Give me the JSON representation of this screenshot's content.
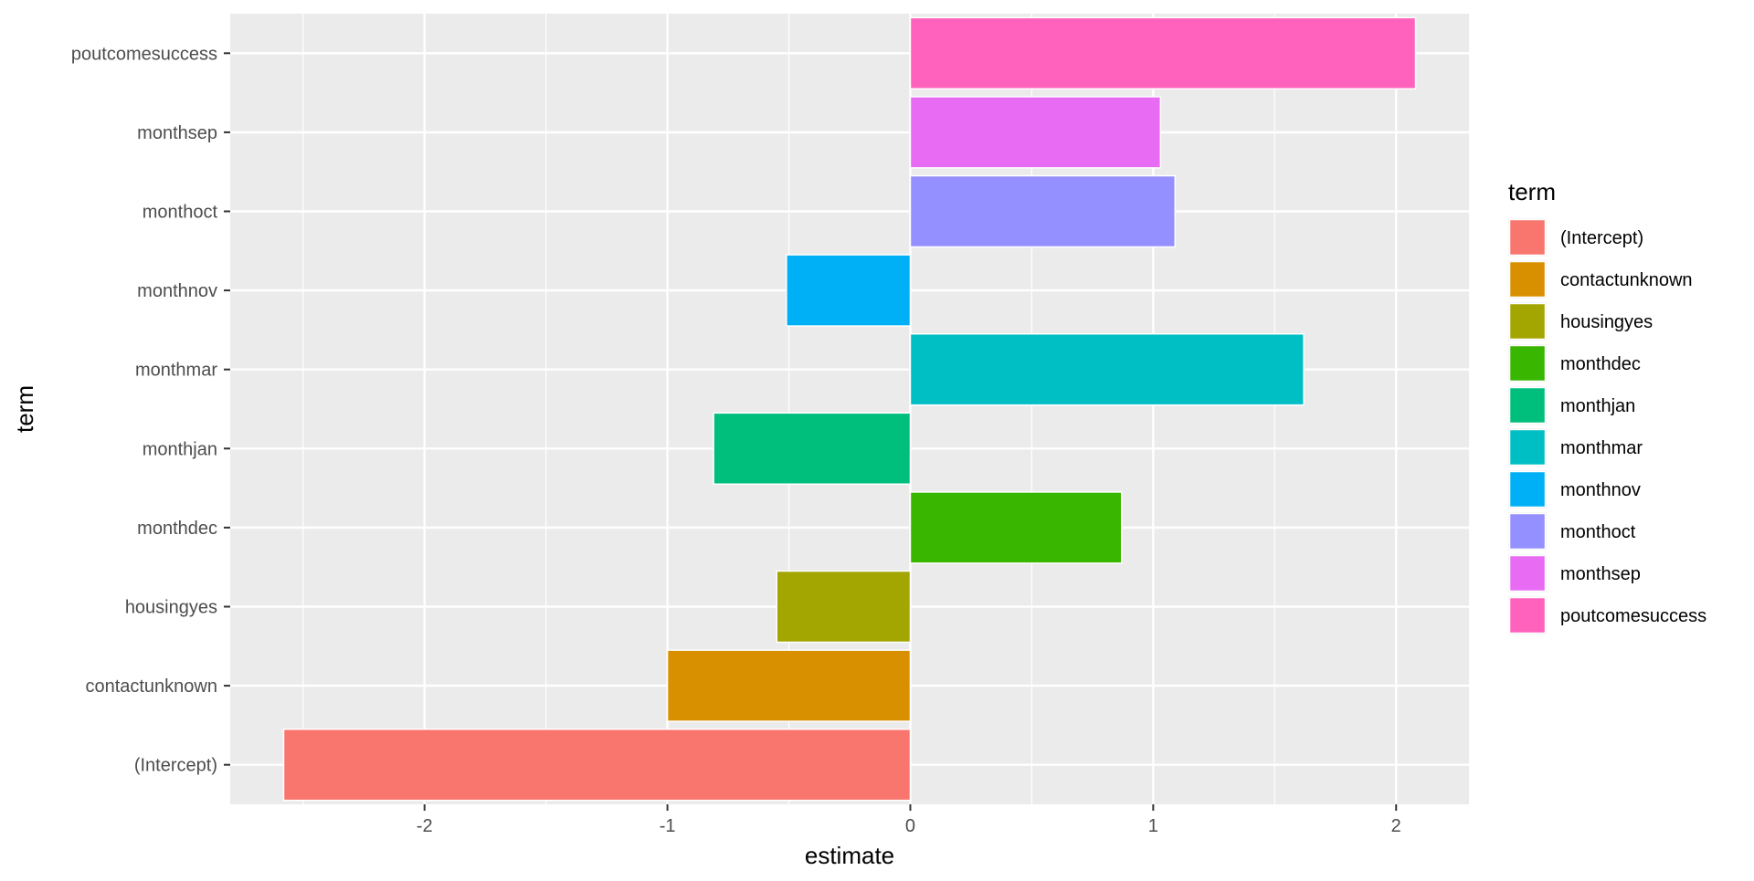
{
  "chart_data": {
    "type": "bar",
    "orientation": "horizontal",
    "categories": [
      "(Intercept)",
      "contactunknown",
      "housingyes",
      "monthdec",
      "monthjan",
      "monthmar",
      "monthnov",
      "monthoct",
      "monthsep",
      "poutcomesuccess"
    ],
    "values": [
      -2.58,
      -1.0,
      -0.55,
      0.87,
      -0.81,
      1.62,
      -0.51,
      1.09,
      1.03,
      2.08
    ],
    "colors": [
      "#F8766D",
      "#D89000",
      "#A3A500",
      "#39B600",
      "#00BF7D",
      "#00BFC4",
      "#00B0F6",
      "#9590FF",
      "#E76BF3",
      "#FF62BC"
    ],
    "xlabel": "estimate",
    "ylabel": "term",
    "xlim": [
      -2.8,
      2.3
    ],
    "xticks": [
      -2,
      -1,
      0,
      1,
      2
    ],
    "xtick_labels": [
      "-2",
      "-1",
      "0",
      "1",
      "2"
    ],
    "grid": true,
    "background": "#EBEBEB",
    "legend": {
      "title": "term",
      "placement": "right",
      "entries": [
        "(Intercept)",
        "contactunknown",
        "housingyes",
        "monthdec",
        "monthjan",
        "monthmar",
        "monthnov",
        "monthoct",
        "monthsep",
        "poutcomesuccess"
      ]
    }
  }
}
